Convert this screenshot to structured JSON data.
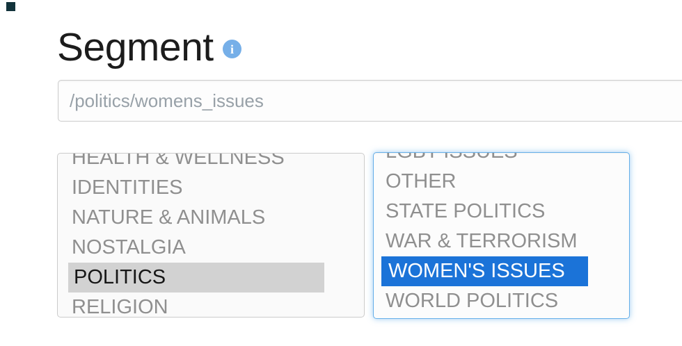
{
  "header": {
    "title": "Segment",
    "info_icon_glyph": "i"
  },
  "segment_input": {
    "value": "/politics/womens_issues"
  },
  "left_list": {
    "items": [
      "HEALTH & WELLNESS",
      "IDENTITIES",
      "NATURE & ANIMALS",
      "NOSTALGIA",
      "POLITICS",
      "RELIGION"
    ],
    "selected": "POLITICS"
  },
  "right_list": {
    "items": [
      "LGBT ISSUES",
      "OTHER",
      "STATE POLITICS",
      "WAR & TERRORISM",
      "WOMEN'S ISSUES",
      "WORLD POLITICS"
    ],
    "selected": "WOMEN'S ISSUES"
  },
  "colors": {
    "selection_blue": "#1b73d8",
    "selection_inactive_gray": "#d2d2d2",
    "focus_border_blue": "#66afe9",
    "info_icon_blue": "#76afe8",
    "corner_artifact": "#12333b"
  }
}
